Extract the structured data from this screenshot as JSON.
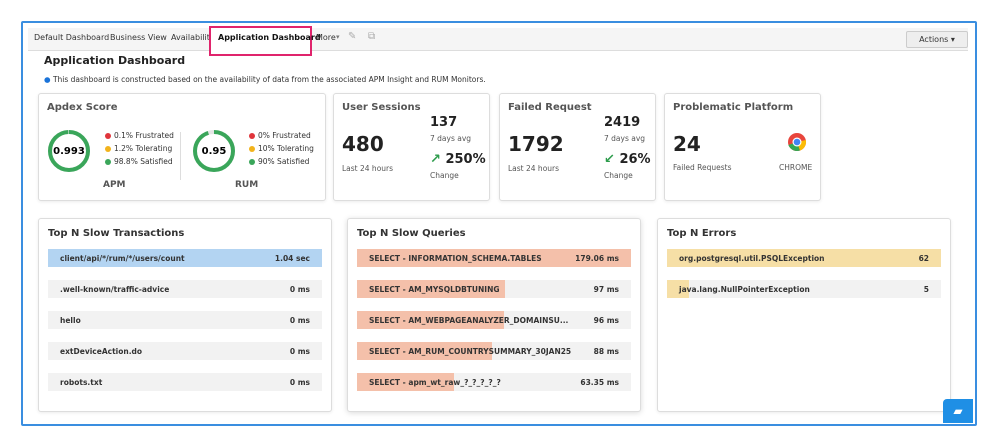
{
  "tabs": [
    "Default Dashboard",
    "Business View",
    "Availability",
    "Application Dashboard",
    "More"
  ],
  "actions": "Actions",
  "title": "Application Dashboard",
  "info": "This dashboard is constructed based on the availability of data from the associated APM Insight and RUM Monitors.",
  "apdex": {
    "title": "Apdex Score",
    "monitors": [
      {
        "label": "APM",
        "score": 0.993,
        "legend": [
          "0.1% Frustrated",
          "1.2% Tolerating",
          "98.8% Satisfied"
        ]
      },
      {
        "label": "RUM",
        "score": 0.95,
        "legend": [
          "0% Frustrated",
          "10% Tolerating",
          "90% Satisfied"
        ]
      }
    ]
  },
  "user_sessions": {
    "title": "User Sessions",
    "main": 480,
    "main_label": "Last 24 hours",
    "avg": 137,
    "avg_label": "7 days avg",
    "change": "250%",
    "change_label": "Change"
  },
  "failed_request": {
    "title": "Failed Request",
    "main": 1792,
    "main_label": "Last 24 hours",
    "avg": 2419,
    "avg_label": "7 days avg",
    "change": "26%",
    "change_label": "Change"
  },
  "platform": {
    "title": "Problematic Platform",
    "main": 24,
    "main_label": "Failed Requests",
    "browser": "CHROME"
  },
  "transactions": {
    "title": "Top N Slow Transactions",
    "rows": [
      {
        "name": "client/api/*/rum/*/users/count",
        "value": 1.04,
        "value_label": "1.04 sec"
      },
      {
        "name": ".well-known/traffic-advice",
        "value": 0,
        "value_label": "0 ms"
      },
      {
        "name": "hello",
        "value": 0,
        "value_label": "0 ms"
      },
      {
        "name": "extDeviceAction.do",
        "value": 0,
        "value_label": "0 ms"
      },
      {
        "name": "robots.txt",
        "value": 0,
        "value_label": "0 ms"
      }
    ]
  },
  "queries": {
    "title": "Top N Slow Queries",
    "rows": [
      {
        "name": "SELECT - INFORMATION_SCHEMA.TABLES",
        "value": 179.06,
        "value_label": "179.06 ms"
      },
      {
        "name": "SELECT - AM_MYSQLDBTUNING",
        "value": 97,
        "value_label": "97 ms"
      },
      {
        "name": "SELECT - AM_WEBPAGEANALYZER_DOMAINSU...",
        "value": 96,
        "value_label": "96 ms"
      },
      {
        "name": "SELECT - AM_RUM_COUNTRYSUMMARY_30JAN25",
        "value": 88,
        "value_label": "88 ms"
      },
      {
        "name": "SELECT - apm_wt_raw_?_?_?_?_?",
        "value": 63.35,
        "value_label": "63.35 ms"
      }
    ]
  },
  "errors": {
    "title": "Top N Errors",
    "rows": [
      {
        "name": "org.postgresql.util.PSQLException",
        "value": 62
      },
      {
        "name": "java.lang.NullPointerException",
        "value": 5
      }
    ]
  }
}
